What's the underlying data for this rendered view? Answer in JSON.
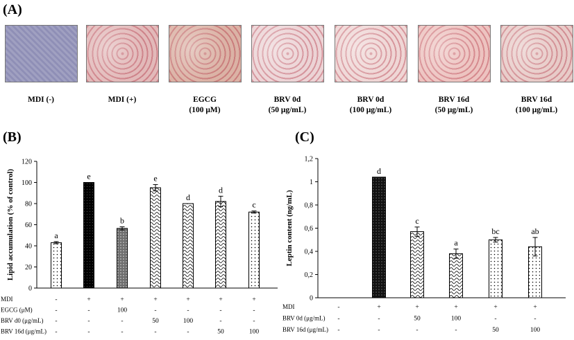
{
  "panel_labels": {
    "a": "(A)",
    "b": "(B)",
    "c": "(C)"
  },
  "photos": [
    {
      "line1": "MDI (-)",
      "line2": "",
      "bg": "#8f8fb6"
    },
    {
      "line1": "MDI (+)",
      "line2": "",
      "bg": "#e2b9b9"
    },
    {
      "line1": "EGCG",
      "line2": "(100 μM)",
      "bg": "#dbb2a5"
    },
    {
      "line1": "BRV 0d",
      "line2": "(50 μg/mL)",
      "bg": "#ecd3d5"
    },
    {
      "line1": "BRV 0d",
      "line2": "(100 μg/mL)",
      "bg": "#efd6d5"
    },
    {
      "line1": "BRV 16d",
      "line2": "(50 μg/mL)",
      "bg": "#edc3c0"
    },
    {
      "line1": "BRV 16d",
      "line2": "(100 μg/mL)",
      "bg": "#e8cbc8"
    }
  ],
  "chart_data": [
    {
      "type": "bar",
      "title": "",
      "xlabel": "",
      "ylabel": "Lipid accumulation (% of control)",
      "ylim": [
        0,
        120
      ],
      "yticks": [
        "0",
        "20",
        "40",
        "60",
        "80",
        "100",
        "120"
      ],
      "values": [
        43,
        100,
        56.5,
        95,
        80,
        82,
        72
      ],
      "errors": [
        1,
        0,
        1.5,
        3,
        0,
        5,
        1
      ],
      "letters": [
        "a",
        "e",
        "b",
        "e",
        "d",
        "d",
        "c"
      ],
      "patterns": [
        "dots",
        "solid",
        "gray",
        "wave",
        "wave",
        "wave",
        "dots"
      ],
      "treatments": [
        {
          "label": "MDI",
          "values": [
            "-",
            "+",
            "+",
            "+",
            "+",
            "+",
            "+"
          ]
        },
        {
          "label": "EGCG (μM)",
          "values": [
            "-",
            "-",
            "100",
            "-",
            "-",
            "-",
            "-"
          ]
        },
        {
          "label": "BRV d0 (μg/mL)",
          "values": [
            "-",
            "-",
            "-",
            "50",
            "100",
            "-",
            "-"
          ]
        },
        {
          "label": "BRV 16d (μg/mL)",
          "values": [
            "-",
            "-",
            "-",
            "-",
            "-",
            "50",
            "100"
          ]
        }
      ]
    },
    {
      "type": "bar",
      "title": "",
      "xlabel": "",
      "ylabel": "Leptin content (ng/mL)",
      "ylim": [
        0,
        1.2
      ],
      "yticks": [
        "0",
        "0,2",
        "0,4",
        "0,6",
        "0,8",
        "1",
        "1,2"
      ],
      "values": [
        0,
        1.04,
        0.57,
        0.38,
        0.5,
        0.44
      ],
      "errors": [
        0,
        0,
        0.04,
        0.04,
        0.02,
        0.08
      ],
      "letters": [
        "",
        "d",
        "c",
        "a",
        "bc",
        "ab"
      ],
      "patterns": [
        "none",
        "black",
        "wave",
        "wave",
        "dots",
        "dots"
      ],
      "treatments": [
        {
          "label": "MDI",
          "values": [
            "-",
            "+",
            "+",
            "+",
            "+",
            "+"
          ]
        },
        {
          "label": "BRV 0d (μg/mL)",
          "values": [
            "-",
            "-",
            "50",
            "100",
            "-",
            "-"
          ]
        },
        {
          "label": "BRV 16d (μg/mL)",
          "values": [
            "-",
            "-",
            "-",
            "-",
            "50",
            "100"
          ]
        }
      ]
    }
  ]
}
